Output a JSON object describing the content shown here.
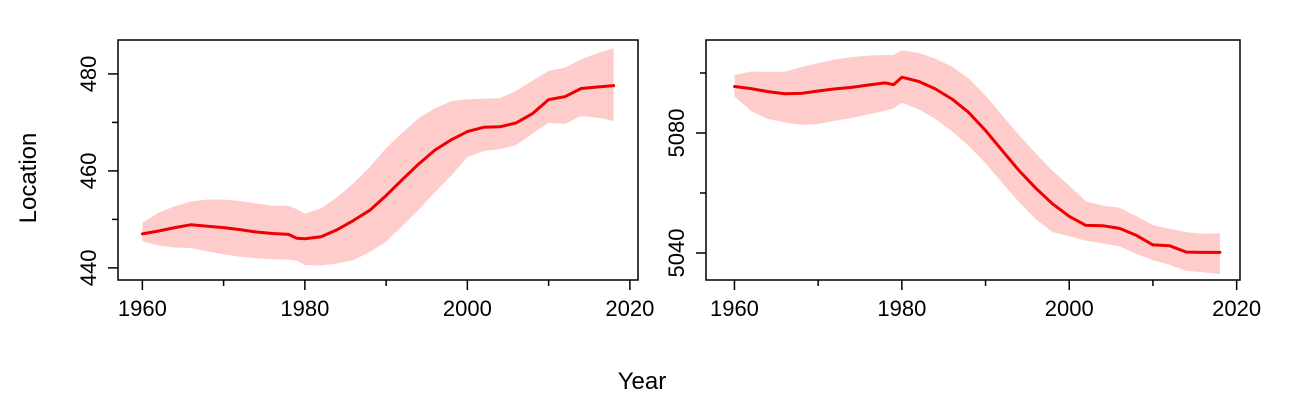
{
  "labels": {
    "ylabel": "Location",
    "xlabel": "Year"
  },
  "colors": {
    "line": "#ee0000",
    "band": "#ffcccc",
    "axis": "#000000"
  },
  "chart_data": [
    {
      "type": "line",
      "xlim": [
        1957,
        2021
      ],
      "ylim": [
        437.5,
        487
      ],
      "x_ticks": [
        1960,
        1980,
        2000,
        2020
      ],
      "x_ticks_minor": [
        1970,
        1990,
        2010
      ],
      "x_tick_labels": [
        "1960",
        "1980",
        "2000",
        "2020"
      ],
      "y_ticks": [
        440,
        460,
        480
      ],
      "y_ticks_minor": [
        450,
        470
      ],
      "y_tick_labels": [
        "440",
        "460",
        "480"
      ],
      "series": [
        {
          "x": [
            1960,
            1962,
            1964,
            1966,
            1968,
            1970,
            1972,
            1974,
            1976,
            1978,
            1979,
            1980,
            1982,
            1984,
            1986,
            1988,
            1990,
            1992,
            1994,
            1996,
            1998,
            2000,
            2002,
            2004,
            2006,
            2008,
            2010,
            2012,
            2014,
            2016,
            2018
          ],
          "y": [
            447,
            447.6,
            448.3,
            448.9,
            448.6,
            448.3,
            447.9,
            447.4,
            447.1,
            446.9,
            446.1,
            446.0,
            446.4,
            447.9,
            449.8,
            451.9,
            454.9,
            458.2,
            461.4,
            464.3,
            466.4,
            468.1,
            469.0,
            469.1,
            469.9,
            471.8,
            474.7,
            475.3,
            477.0,
            477.3,
            477.6
          ],
          "lower": [
            445.5,
            444.6,
            444.2,
            444.1,
            443.4,
            442.8,
            442.3,
            442.0,
            441.8,
            441.7,
            441.5,
            440.6,
            440.5,
            440.9,
            441.6,
            443.3,
            445.4,
            448.7,
            452.0,
            455.6,
            459.0,
            462.8,
            464.1,
            464.5,
            465.3,
            467.7,
            469.9,
            469.7,
            471.3,
            471.0,
            470.3
          ],
          "upper": [
            449.3,
            451.4,
            452.7,
            453.7,
            454.1,
            454.1,
            453.8,
            453.3,
            452.8,
            452.8,
            452.1,
            451.2,
            452.3,
            454.6,
            457.5,
            460.8,
            464.7,
            467.9,
            470.9,
            472.9,
            474.4,
            474.8,
            474.9,
            475.0,
            476.5,
            478.6,
            480.6,
            481.3,
            483.0,
            484.3,
            485.3
          ]
        }
      ]
    },
    {
      "type": "line",
      "xlim": [
        1956.6,
        2020.4
      ],
      "ylim": [
        5031,
        5111
      ],
      "x_ticks": [
        1960,
        1980,
        2000,
        2020
      ],
      "x_ticks_minor": [
        1970,
        1990,
        2010
      ],
      "x_tick_labels": [
        "1960",
        "1980",
        "2000",
        "2020"
      ],
      "y_ticks": [
        5040,
        5080
      ],
      "y_ticks_minor": [
        5060,
        5100
      ],
      "y_tick_labels": [
        "5040",
        "5080"
      ],
      "series": [
        {
          "x": [
            1960,
            1962,
            1964,
            1966,
            1968,
            1970,
            1972,
            1974,
            1976,
            1978,
            1979,
            1980,
            1982,
            1984,
            1986,
            1988,
            1990,
            1992,
            1994,
            1996,
            1998,
            2000,
            2002,
            2004,
            2006,
            2008,
            2010,
            2012,
            2014,
            2016,
            2018
          ],
          "y": [
            5095.5,
            5094.8,
            5093.8,
            5093.1,
            5093.2,
            5094.0,
            5094.7,
            5095.2,
            5096.0,
            5096.7,
            5096.1,
            5098.6,
            5097.2,
            5094.7,
            5091.3,
            5086.8,
            5080.8,
            5074.1,
            5067.5,
            5061.6,
            5056.4,
            5052.2,
            5049.2,
            5049.1,
            5048.2,
            5045.9,
            5042.7,
            5042.4,
            5040.3,
            5040.2,
            5040.2
          ],
          "lower": [
            5092.2,
            5087.3,
            5084.7,
            5083.5,
            5082.7,
            5083.0,
            5084.1,
            5085.0,
            5086.2,
            5087.4,
            5088.2,
            5090.1,
            5087.9,
            5084.7,
            5080.5,
            5075.7,
            5069.9,
            5063.3,
            5057.0,
            5051.3,
            5047.0,
            5045.6,
            5044.1,
            5043.2,
            5042.2,
            5039.7,
            5037.6,
            5036.1,
            5034.0,
            5033.6,
            5032.9
          ],
          "upper": [
            5099.3,
            5100.5,
            5100.4,
            5100.4,
            5102.0,
            5103.3,
            5104.5,
            5105.3,
            5105.8,
            5106.0,
            5106.0,
            5107.6,
            5106.7,
            5104.8,
            5102.1,
            5098.2,
            5092.4,
            5085.9,
            5079.3,
            5073.2,
            5067.4,
            5062.4,
            5057.2,
            5055.8,
            5055.1,
            5052.3,
            5049.3,
            5048.1,
            5046.9,
            5046.4,
            5046.6
          ]
        }
      ]
    }
  ]
}
